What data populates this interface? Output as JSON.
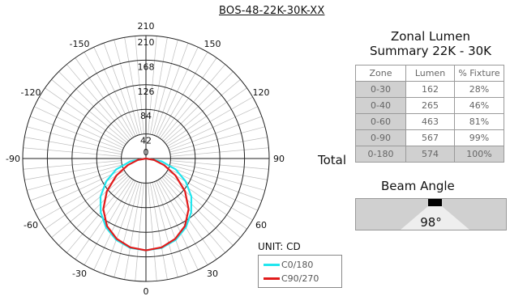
{
  "model": "BOS-48-22K-30K-XX",
  "chart_data": {
    "type": "polar",
    "radial_ticks": [
      42,
      84,
      126,
      168,
      210
    ],
    "radial_center_label": "0",
    "rmax": 210,
    "angle_labels": [
      "0",
      "30",
      "60",
      "90",
      "120",
      "150",
      "210",
      "-150",
      "-120",
      "-90",
      "-60",
      "-30"
    ],
    "unit_label": "UNIT: CD",
    "series": [
      {
        "name": "C0/180",
        "color": "#22e6ee",
        "peak_cd": 157,
        "theta": [
          0,
          10,
          20,
          30,
          40,
          50,
          60,
          70,
          80,
          90
        ],
        "cd": [
          157,
          155,
          148,
          136,
          120,
          101,
          78,
          54,
          27,
          0
        ]
      },
      {
        "name": "C90/270",
        "color": "#e11b1b",
        "peak_cd": 157,
        "theta": [
          0,
          10,
          20,
          30,
          40,
          50,
          60,
          70,
          80,
          90
        ],
        "cd": [
          157,
          154,
          146,
          133,
          113,
          87,
          58,
          33,
          14,
          0
        ]
      }
    ]
  },
  "zonal": {
    "title_line1": "Zonal Lumen",
    "title_line2": "Summary 22K - 30K",
    "headers": [
      "Zone",
      "Lumen",
      "% Fixture"
    ],
    "rows": [
      [
        "0-30",
        "162",
        "28%"
      ],
      [
        "0-40",
        "265",
        "46%"
      ],
      [
        "0-60",
        "463",
        "81%"
      ],
      [
        "0-90",
        "567",
        "99%"
      ]
    ],
    "total_label": "Total",
    "total_row": [
      "0-180",
      "574",
      "100%"
    ]
  },
  "beam": {
    "title": "Beam Angle",
    "value": "98°"
  }
}
